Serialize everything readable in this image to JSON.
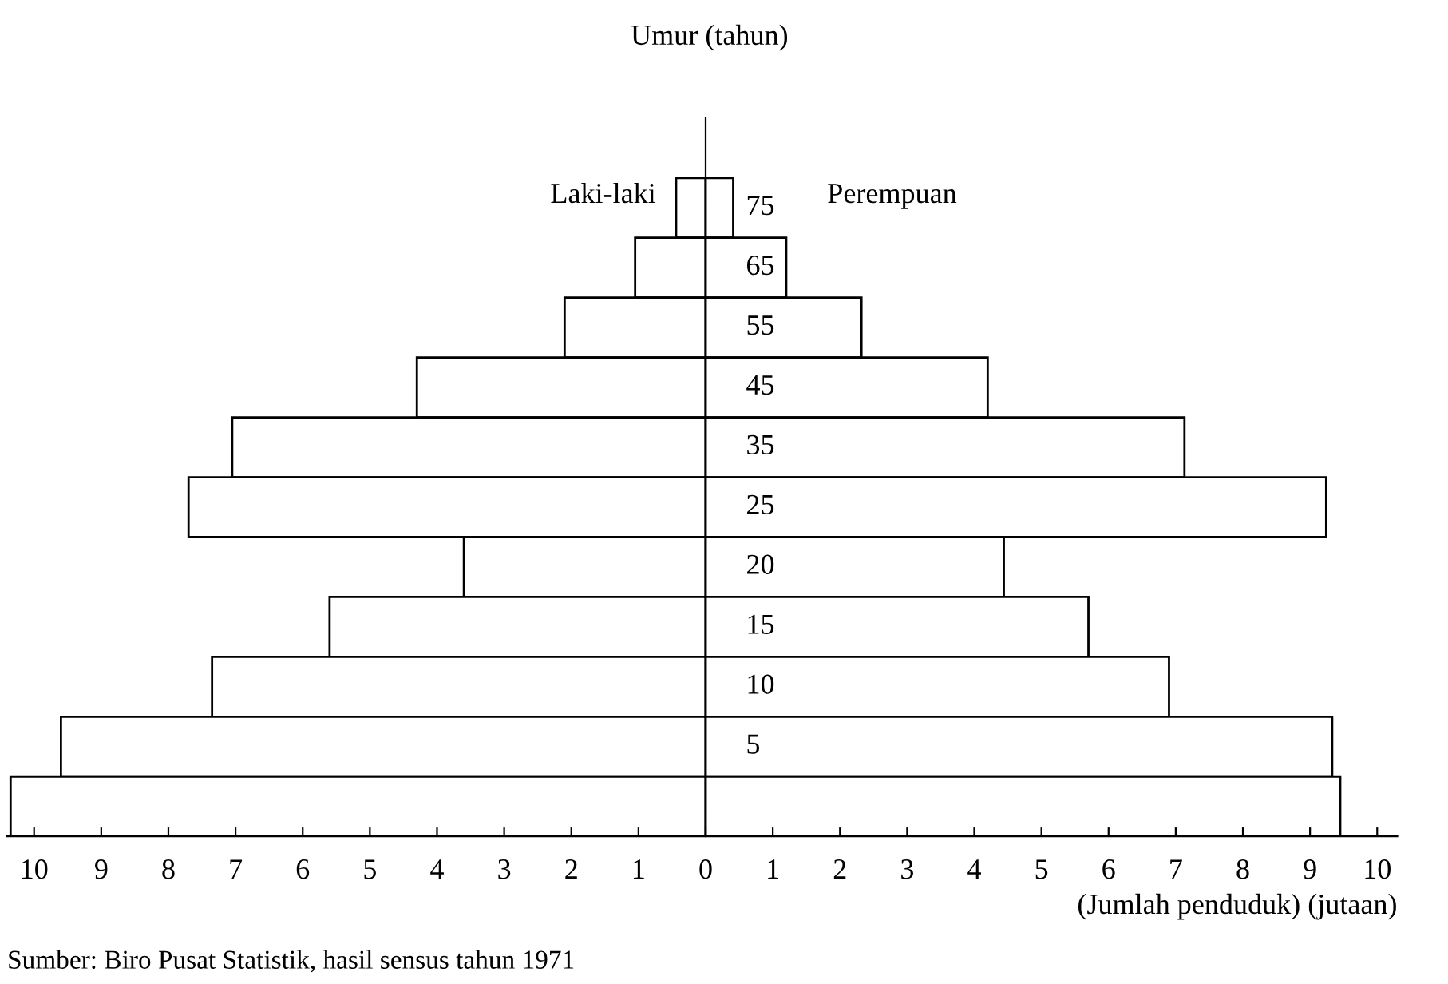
{
  "chart_data": {
    "type": "bar",
    "orientation": "horizontal",
    "ylabel": "Umur (tahun)",
    "xlabel": "(Jumlah penduduk) (jutaan)",
    "categories": [
      "75",
      "65",
      "55",
      "45",
      "35",
      "25",
      "20",
      "15",
      "10",
      "5",
      null
    ],
    "series": [
      {
        "name": "Laki-laki",
        "color": "#ffffff",
        "values": [
          -0.44,
          -1.05,
          -2.1,
          -4.3,
          -7.05,
          -7.7,
          -3.6,
          -5.6,
          -7.35,
          -9.6,
          -10.35
        ]
      },
      {
        "name": "Perempuan",
        "color": "#ffffff",
        "values": [
          0.41,
          1.2,
          2.32,
          4.2,
          7.13,
          9.24,
          4.44,
          5.7,
          6.9,
          9.33,
          9.45
        ]
      }
    ],
    "xlim": [
      -10.4,
      10.3
    ],
    "xticks": [
      {
        "value": -10,
        "label": "10"
      },
      {
        "value": -9,
        "label": "9"
      },
      {
        "value": -8,
        "label": "8"
      },
      {
        "value": -7,
        "label": "7"
      },
      {
        "value": -6,
        "label": "6"
      },
      {
        "value": -5,
        "label": "5"
      },
      {
        "value": -4,
        "label": "4"
      },
      {
        "value": -3,
        "label": "3"
      },
      {
        "value": -2,
        "label": "2"
      },
      {
        "value": -1,
        "label": "1"
      },
      0,
      1,
      2,
      3,
      4,
      5,
      6,
      7,
      8,
      9,
      10
    ],
    "stacked": true,
    "annotations": [
      "Sumber: Biro Pusat Statistik, hasil sensus tahun 1971"
    ],
    "legend": false,
    "grid": false
  }
}
